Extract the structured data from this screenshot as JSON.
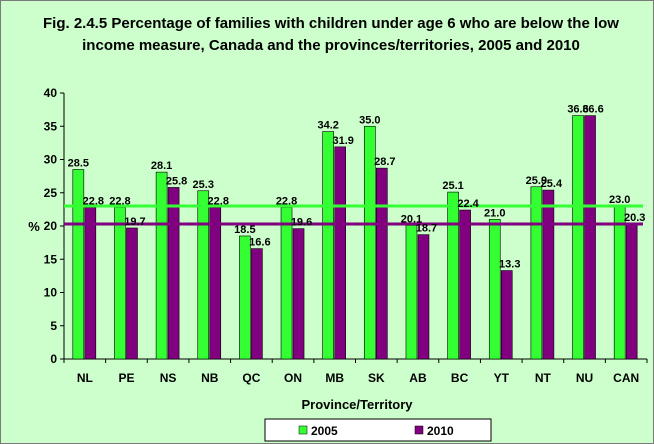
{
  "chart_data": {
    "type": "bar",
    "title": "Fig. 2.4.5 Percentage of families with children under age 6 who are below the low income measure, Canada and the provinces/territories, 2005 and 2010",
    "xlabel": "Province/Territory",
    "ylabel": "%",
    "ylim": [
      0,
      40
    ],
    "yticks": [
      "0",
      "5",
      "10",
      "15",
      "20",
      "25",
      "30",
      "35",
      "40"
    ],
    "categories": [
      "NL",
      "PE",
      "NS",
      "NB",
      "QC",
      "ON",
      "MB",
      "SK",
      "AB",
      "BC",
      "YT",
      "NT",
      "NU",
      "CAN"
    ],
    "series": [
      {
        "name": "2005",
        "color": "#33ff33",
        "values": [
          28.5,
          22.8,
          28.1,
          25.3,
          18.5,
          22.8,
          34.2,
          35.0,
          20.1,
          25.1,
          21.0,
          25.9,
          36.6,
          23.0
        ],
        "labels": [
          "28.5",
          "22.8",
          "28.1",
          "25.3",
          "18.5",
          "22.8",
          "34.2",
          "35.0",
          "20.1",
          "25.1",
          "21.0",
          "25.9",
          "36.6",
          "23.0"
        ]
      },
      {
        "name": "2010",
        "color": "#800080",
        "values": [
          22.8,
          19.7,
          25.8,
          22.8,
          16.6,
          19.6,
          31.9,
          28.7,
          18.7,
          22.4,
          13.3,
          25.4,
          36.6,
          20.3
        ],
        "labels": [
          "22.8",
          "19.7",
          "25.8",
          "22.8",
          "16.6",
          "19.6",
          "31.9",
          "28.7",
          "18.7",
          "22.4",
          "13.3",
          "25.4",
          "36.6",
          "20.3"
        ]
      }
    ],
    "reference_lines": [
      {
        "series": "2005",
        "value": 23.0,
        "color": "#33ff33"
      },
      {
        "series": "2010",
        "value": 20.3,
        "color": "#800080"
      }
    ],
    "legend_position": "bottom"
  }
}
